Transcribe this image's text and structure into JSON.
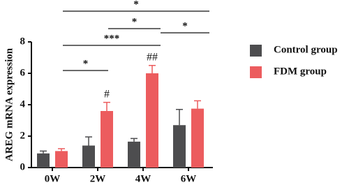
{
  "chart_data": {
    "type": "bar",
    "y_label": "AREG mRNA expression",
    "categories": [
      "0W",
      "2W",
      "4W",
      "6W"
    ],
    "series": [
      {
        "name": "Control group",
        "color": "#4d4d4f",
        "values": [
          0.9,
          1.4,
          1.65,
          2.7
        ],
        "errors": [
          0.15,
          0.55,
          0.2,
          1.0
        ]
      },
      {
        "name": "FDM group",
        "color": "#ec5c5e",
        "values": [
          1.05,
          3.6,
          6.0,
          3.75
        ],
        "errors": [
          0.15,
          0.55,
          0.5,
          0.5
        ],
        "annotations": [
          null,
          "#",
          "##",
          null
        ]
      }
    ],
    "ylim": [
      0,
      8
    ],
    "yticks": [
      0,
      2,
      4,
      6,
      8
    ],
    "legend": "right",
    "significance": [
      {
        "from": "0W",
        "to": "6W",
        "label": "*"
      },
      {
        "from": "2W",
        "to": "4W",
        "label": "*"
      },
      {
        "from": "4W",
        "to": "6W",
        "label": "*"
      },
      {
        "from": "0W",
        "to": "4W",
        "label": "***"
      },
      {
        "from": "0W",
        "to": "2W",
        "label": "*"
      }
    ]
  }
}
